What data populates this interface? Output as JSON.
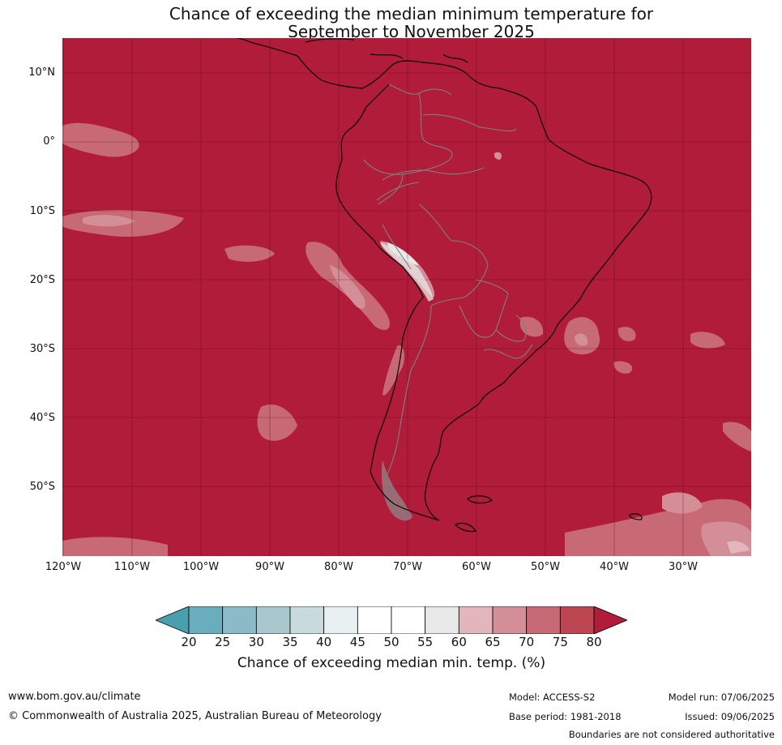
{
  "title": {
    "line1": "Chance of exceeding the median minimum temperature for",
    "line2": "September to November 2025"
  },
  "map": {
    "region": "South America",
    "background_color": "#b01c39",
    "latitude_labels": [
      "10°N",
      "0°",
      "10°S",
      "20°S",
      "30°S",
      "40°S",
      "50°S"
    ],
    "longitude_labels": [
      "120°W",
      "110°W",
      "100°W",
      "90°W",
      "80°W",
      "70°W",
      "60°W",
      "50°W",
      "40°W",
      "30°W"
    ],
    "coastline_color": "#000000",
    "border_color": "#808080",
    "grid_color": "#5a0a1c"
  },
  "colorbar": {
    "ticks": [
      "20",
      "25",
      "30",
      "35",
      "40",
      "45",
      "50",
      "55",
      "60",
      "65",
      "70",
      "75",
      "80"
    ],
    "colors": [
      "#4a9fae",
      "#6aaebd",
      "#8cbac6",
      "#a9c8ce",
      "#c9dadd",
      "#e9f0f2",
      "#ffffff",
      "#ffffff",
      "#e8e8e8",
      "#e2b6bc",
      "#d48e97",
      "#c76a76",
      "#bd4653",
      "#b01c39"
    ],
    "label": "Chance of exceeding median min. temp. (%)"
  },
  "footer": {
    "website": "www.bom.gov.au/climate",
    "copyright": "© Commonwealth of Australia 2025, Australian Bureau of Meteorology",
    "model": "Model: ACCESS-S2",
    "base_period": "Base period: 1981-2018",
    "model_run": "Model run: 07/06/2025",
    "issued": "Issued: 09/06/2025",
    "disclaimer": "Boundaries are not considered authoritative"
  }
}
